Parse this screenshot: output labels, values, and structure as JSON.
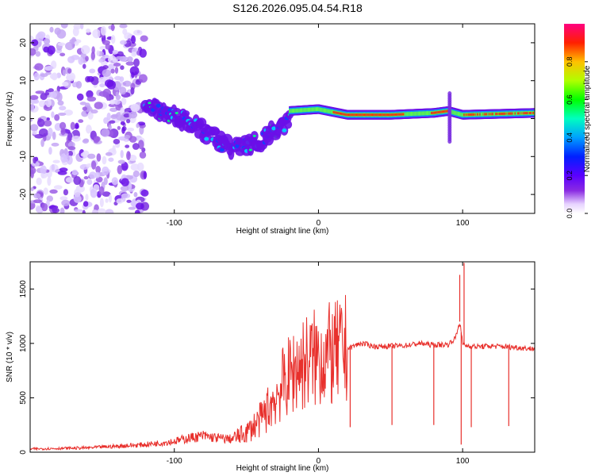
{
  "page_title": "S126.2026.095.04.54.R18",
  "chart_data": [
    {
      "type": "heatmap",
      "title": "S126.2026.095.04.54.R18",
      "xlabel": "Height of straight line (km)",
      "ylabel": "Frequency (Hz)",
      "xlim": [
        -200,
        150
      ],
      "ylim": [
        -25,
        25
      ],
      "x_ticks": [
        -100,
        0,
        100
      ],
      "y_ticks": [
        -20,
        -10,
        0,
        10,
        20
      ],
      "colorbar": {
        "label": "Normalized spectral amplitude",
        "range": [
          0,
          1
        ],
        "ticks": [
          "0.0",
          "0.2",
          "0.4",
          "0.6",
          "0.8"
        ]
      },
      "features": [
        {
          "name": "scattered noise",
          "x_range": [
            -200,
            -120
          ],
          "freq_range": [
            -25,
            25
          ]
        },
        {
          "name": "descending band",
          "x": [
            -120,
            -100,
            -80,
            -60,
            -40,
            -20
          ],
          "freq": [
            3,
            1,
            -3,
            -8,
            -6,
            0
          ]
        },
        {
          "name": "steady tone",
          "x": [
            -20,
            0,
            20,
            50,
            80,
            90,
            100,
            150
          ],
          "freq": [
            2,
            2.5,
            1,
            1,
            1.5,
            2,
            1,
            1.5
          ]
        }
      ]
    },
    {
      "type": "line",
      "xlabel": "Height of straight line (km)",
      "ylabel": "SNR (10 * v/v)",
      "xlim": [
        -200,
        150
      ],
      "ylim": [
        0,
        1750
      ],
      "x_ticks": [
        -100,
        0,
        100
      ],
      "y_ticks": [
        0,
        500,
        1000,
        1500
      ],
      "series": [
        {
          "name": "SNR",
          "color": "#e8302c",
          "x": [
            -200,
            -180,
            -160,
            -140,
            -120,
            -100,
            -90,
            -80,
            -70,
            -60,
            -50,
            -40,
            -30,
            -25,
            -20,
            -15,
            -10,
            -5,
            0,
            5,
            10,
            15,
            20,
            25,
            30,
            40,
            50,
            60,
            70,
            80,
            90,
            95,
            98,
            100,
            102,
            110,
            120,
            130,
            140,
            150
          ],
          "values": [
            30,
            35,
            40,
            55,
            70,
            100,
            130,
            150,
            130,
            120,
            180,
            300,
            500,
            620,
            700,
            780,
            820,
            850,
            870,
            900,
            880,
            920,
            950,
            980,
            1000,
            970,
            975,
            980,
            1000,
            985,
            990,
            1050,
            1200,
            1000,
            980,
            970,
            975,
            970,
            960,
            950
          ]
        }
      ],
      "dips": [
        {
          "x": 22,
          "value": 230
        },
        {
          "x": 51,
          "value": 250
        },
        {
          "x": 80,
          "value": 250
        },
        {
          "x": 99,
          "value": 70
        },
        {
          "x": 106,
          "value": 230
        },
        {
          "x": 132,
          "value": 240
        }
      ],
      "spikes": [
        {
          "x": 98,
          "value": 1630
        },
        {
          "x": 101,
          "value": 1740
        }
      ]
    }
  ]
}
